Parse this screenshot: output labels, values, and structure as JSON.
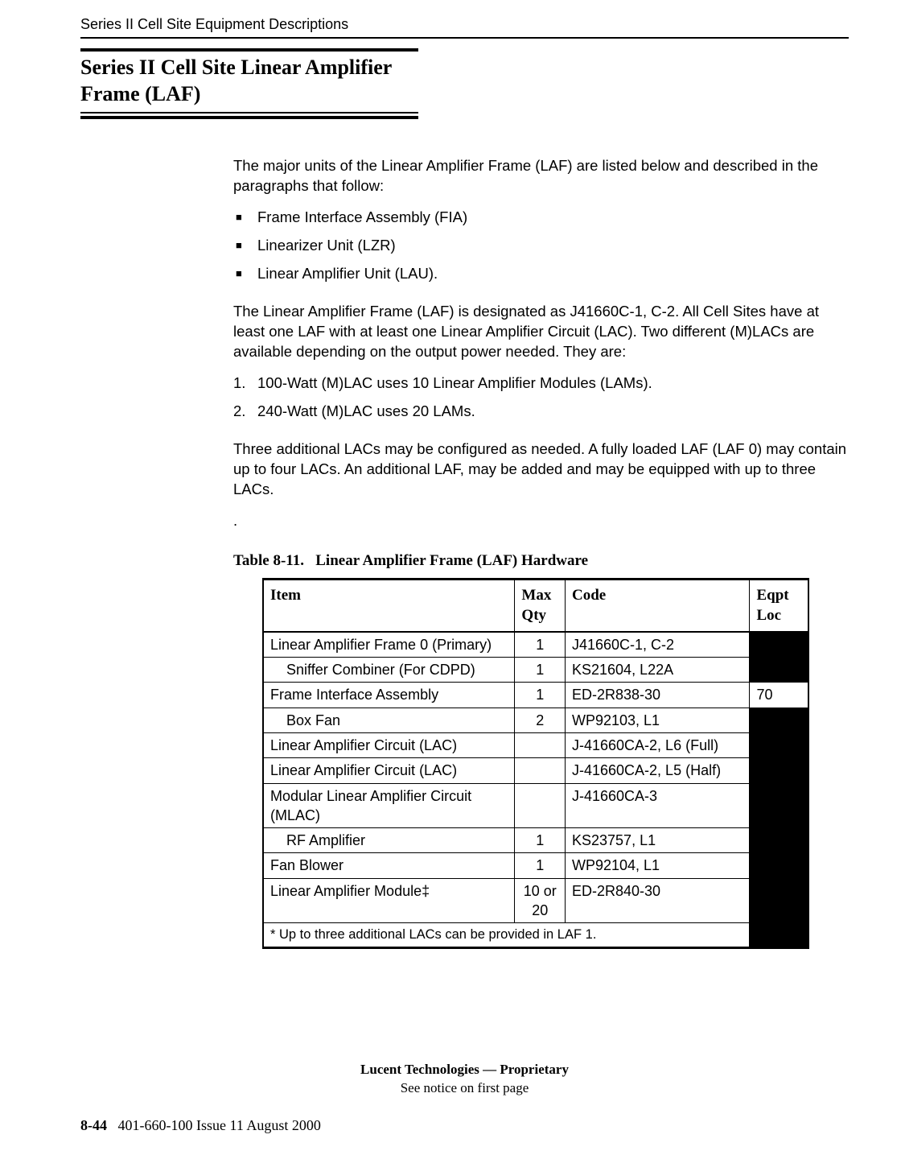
{
  "header": {
    "running": "Series II Cell Site Equipment Descriptions"
  },
  "title": {
    "line": "Series II Cell Site Linear Amplifier Frame (LAF)"
  },
  "body": {
    "p1": "The major units of the Linear Amplifier Frame (LAF) are listed below and described in the paragraphs that follow:",
    "bullets": [
      "Frame Interface Assembly (FIA)",
      "Linearizer Unit (LZR)",
      "Linear Amplifier Unit (LAU)."
    ],
    "p2": "The Linear Amplifier Frame (LAF) is designated as J41660C-1, C-2. All Cell Sites have at least one LAF with at least one Linear Amplifier Circuit (LAC). Two different (M)LACs are available depending on the output power needed. They are:",
    "numbered": [
      "100-Watt (M)LAC uses 10 Linear Amplifier Modules (LAMs).",
      "240-Watt (M)LAC uses 20 LAMs."
    ],
    "p3": "Three additional LACs may be configured as needed. A fully loaded LAF (LAF 0) may contain up to four LACs. An additional LAF, may be added and may be equipped with up to three LACs.",
    "dot": "."
  },
  "table": {
    "caption_label": "Table 8-11.",
    "caption_text": "Linear Amplifier Frame (LAF) Hardware",
    "columns": {
      "item": "Item",
      "qty": "Max Qty",
      "code": "Code",
      "loc": "Eqpt Loc"
    },
    "rows": [
      {
        "item": "Linear Amplifier Frame 0 (Primary)",
        "indent": false,
        "qty": "1",
        "code": "J41660C-1, C-2",
        "loc": "",
        "loc_redact": true
      },
      {
        "item": "Sniffer Combiner (For CDPD)",
        "indent": true,
        "qty": "1",
        "code": "KS21604, L22A",
        "loc": "",
        "loc_redact": true
      },
      {
        "item": "Frame Interface Assembly",
        "indent": false,
        "qty": "1",
        "code": "ED-2R838-30",
        "loc": "70",
        "loc_redact": false
      },
      {
        "item": "Box Fan",
        "indent": true,
        "qty": "2",
        "code": "WP92103, L1",
        "loc": "",
        "loc_redact": true
      },
      {
        "item": "Linear Amplifier Circuit (LAC)",
        "indent": false,
        "qty": "",
        "code": "J-41660CA-2, L6 (Full)",
        "loc": "",
        "loc_redact": true
      },
      {
        "item": "Linear Amplifier Circuit (LAC)",
        "indent": false,
        "qty": "",
        "code": "J-41660CA-2, L5 (Half)",
        "loc": "",
        "loc_redact": true
      },
      {
        "item": "Modular Linear Amplifier Circuit (MLAC)",
        "indent": false,
        "qty": "",
        "code": "J-41660CA-3",
        "loc": "",
        "loc_redact": true
      },
      {
        "item": "RF Amplifier",
        "indent": true,
        "qty": "1",
        "code": "KS23757, L1",
        "loc": "",
        "loc_redact": true
      },
      {
        "item": "Fan Blower",
        "indent": false,
        "qty": "1",
        "code": "WP92104, L1",
        "loc": "",
        "loc_redact": true
      },
      {
        "item": "Linear Amplifier Module‡",
        "indent": false,
        "qty": "10 or 20",
        "code": "ED-2R840-30",
        "loc": "",
        "loc_redact": true
      }
    ],
    "footnote_text": "* Up to three additional LACs can be provided in LAF 1.",
    "footnote_loc_redact": true
  },
  "footer": {
    "proprietary_bold": "Lucent Technologies — Proprietary",
    "proprietary_sub": "See notice on first page",
    "page": "8-44",
    "docinfo": "401-660-100 Issue 11    August 2000"
  }
}
